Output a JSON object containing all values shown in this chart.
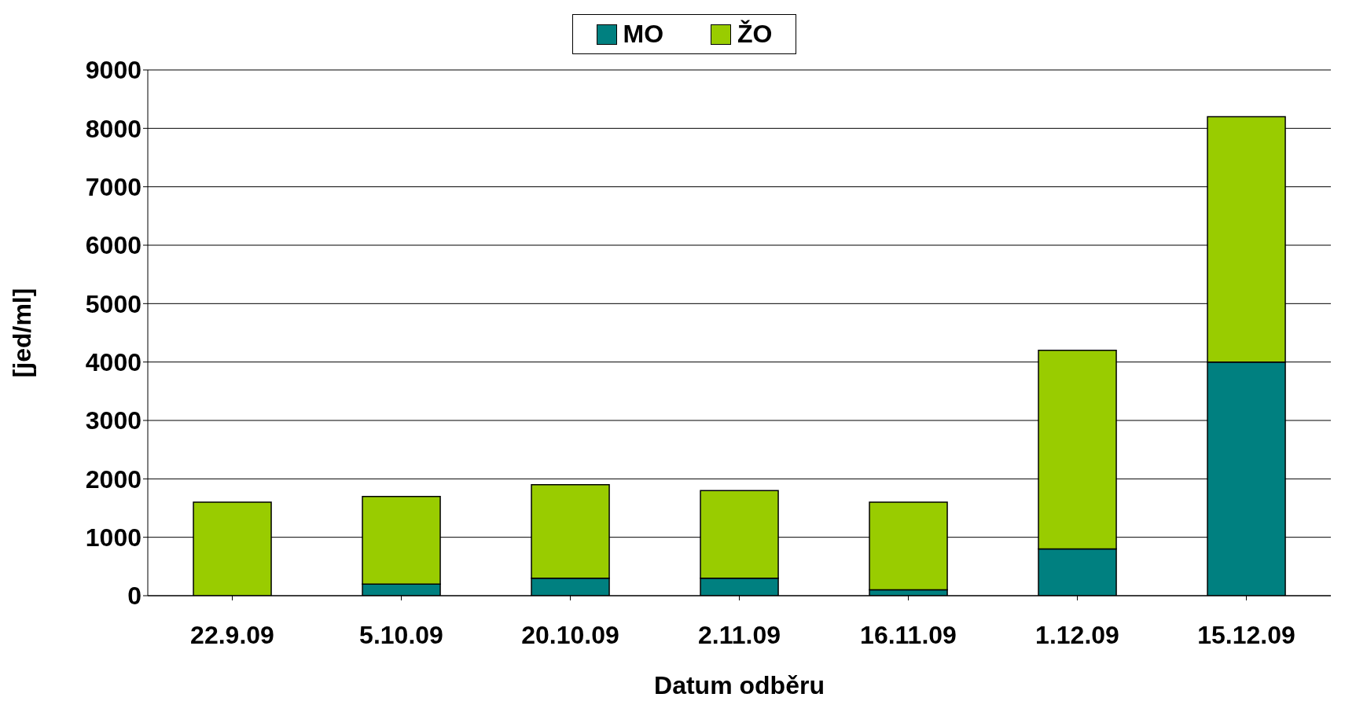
{
  "chart_data": {
    "type": "bar",
    "stacked": true,
    "xlabel": "Datum odběru",
    "ylabel": "[jed/ml]",
    "categories": [
      "22.9.09",
      "5.10.09",
      "20.10.09",
      "2.11.09",
      "16.11.09",
      "1.12.09",
      "15.12.09"
    ],
    "series": [
      {
        "name": "MO",
        "color": "#008080",
        "values": [
          0,
          200,
          300,
          300,
          100,
          800,
          4000
        ]
      },
      {
        "name": "ŽO",
        "color": "#99cc00",
        "values": [
          1600,
          1500,
          1600,
          1500,
          1500,
          3400,
          4200
        ]
      }
    ],
    "ylim": [
      0,
      9000
    ],
    "yticks": [
      0,
      1000,
      2000,
      3000,
      4000,
      5000,
      6000,
      7000,
      8000,
      9000
    ],
    "grid": "y",
    "legend": "top"
  }
}
